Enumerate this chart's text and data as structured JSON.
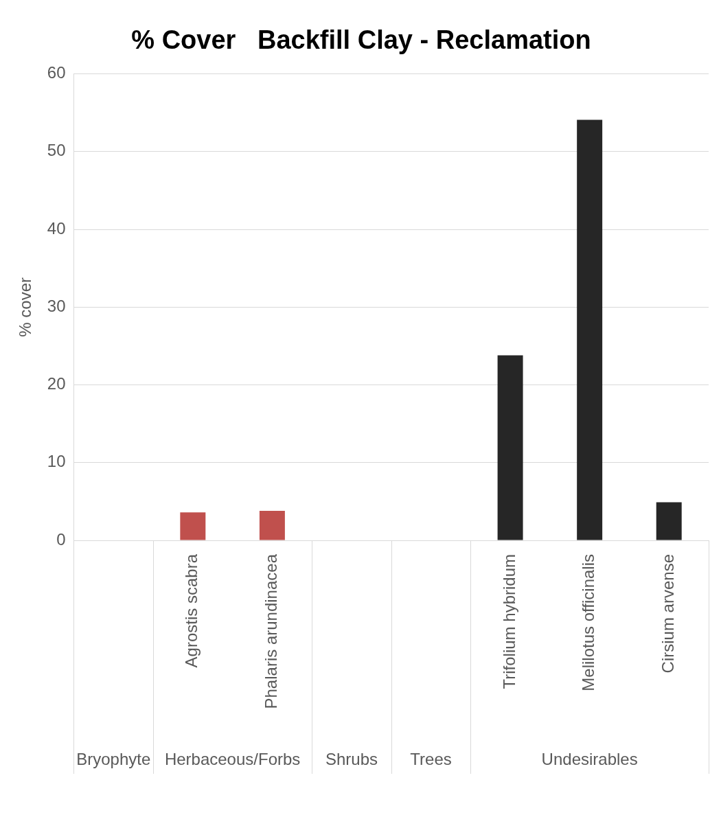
{
  "chart_data": {
    "type": "bar",
    "title": "% Cover   Backfill Clay - Reclamation",
    "ylabel": "% cover",
    "categories": [
      null,
      "Agrostis scabra",
      "Phalaris arundinacea",
      null,
      null,
      "Trifolium hybridum",
      "Melilotus officinalis",
      "Cirsium arvense"
    ],
    "values": [
      null,
      3.6,
      3.8,
      null,
      null,
      23.8,
      54.1,
      4.9
    ],
    "colors": [
      "#c0504d",
      "#c0504d",
      "#c0504d",
      "#262626",
      "#262626",
      "#262626",
      "#262626",
      "#262626"
    ],
    "annotations": [
      "Bryophyte",
      "Herbaceous/Forbs",
      "Shrubs",
      "Trees",
      "Undesirables"
    ],
    "ylim": [
      0,
      60
    ],
    "yticks": [
      0,
      10,
      20,
      30,
      40,
      50,
      60
    ],
    "grid": "y",
    "legend": false
  }
}
